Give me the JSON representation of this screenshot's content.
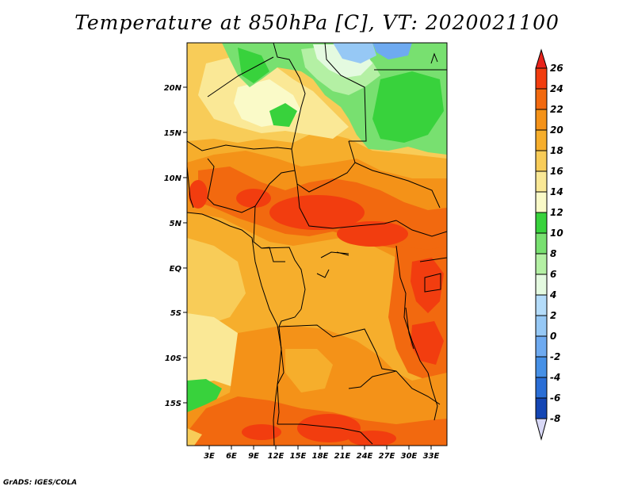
{
  "title": "Temperature at 850hPa [C], VT: 2020021100",
  "credit": "GrADS: IGES/COLA",
  "map": {
    "lat_labels": [
      "20N",
      "15N",
      "10N",
      "5N",
      "EQ",
      "5S",
      "10S",
      "15S"
    ],
    "lon_labels": [
      "3E",
      "6E",
      "9E",
      "12E",
      "15E",
      "18E",
      "21E",
      "24E",
      "27E",
      "30E",
      "33E"
    ]
  },
  "colorbar": {
    "labels": [
      "26",
      "24",
      "22",
      "20",
      "18",
      "16",
      "14",
      "12",
      "10",
      "8",
      "6",
      "4",
      "2",
      "0",
      "-2",
      "-4",
      "-6",
      "-8"
    ],
    "colors": {
      "above_26": "#e8231b",
      "24_26": "#f23d0f",
      "22_24": "#f2690f",
      "20_22": "#f49218",
      "18_20": "#f6ae2c",
      "16_18": "#f8cc58",
      "14_16": "#fae896",
      "12_14": "#fafac8",
      "10_12": "#38d23c",
      "8_10": "#78e070",
      "6_8": "#b4f0a4",
      "4_6": "#e4fae0",
      "2_4": "#b4dcfa",
      "0_2": "#96c8f5",
      "m2_0": "#6eaaf0",
      "m4_m2": "#4690e6",
      "m6_m4": "#2a6ed6",
      "m8_m6": "#1446b4",
      "below_m8": "#0a1470",
      "min_tip": "#d8d8f6"
    }
  }
}
